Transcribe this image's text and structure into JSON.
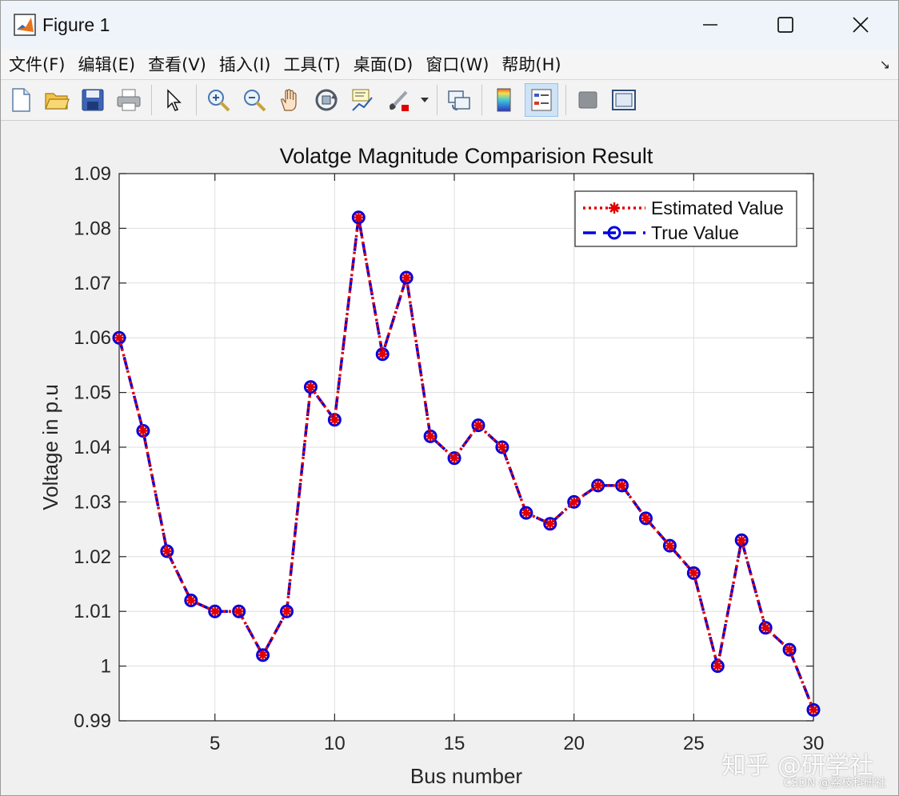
{
  "window": {
    "title": "Figure 1",
    "menu": [
      "文件(F)",
      "编辑(E)",
      "查看(V)",
      "插入(I)",
      "工具(T)",
      "桌面(D)",
      "窗口(W)",
      "帮助(H)"
    ],
    "toolbar_icons": [
      "new-file-icon",
      "open-folder-icon",
      "save-icon",
      "print-icon",
      "select-pointer-icon",
      "zoom-in-icon",
      "zoom-out-icon",
      "pan-hand-icon",
      "rotate-3d-icon",
      "data-cursor-icon",
      "brush-icon",
      "brush-dropdown-icon",
      "link-plot-icon",
      "colorbar-icon",
      "legend-icon",
      "hide-plot-tools-icon",
      "show-plot-tools-icon"
    ],
    "active_tool": "legend-icon"
  },
  "watermark": {
    "main": "知乎 @研学社",
    "sub": "CSDN @荔枝科研社"
  },
  "chart_data": {
    "type": "line",
    "title": "Volatge Magnitude Comparision Result",
    "xlabel": "Bus number",
    "ylabel": "Voltage in p.u",
    "xlim": [
      1,
      30
    ],
    "ylim": [
      0.99,
      1.09
    ],
    "xticks": [
      5,
      10,
      15,
      20,
      25,
      30
    ],
    "yticks": [
      "0.99",
      "1",
      "1.01",
      "1.02",
      "1.03",
      "1.04",
      "1.05",
      "1.06",
      "1.07",
      "1.08",
      "1.09"
    ],
    "grid": true,
    "legend_position": "top-right",
    "x": [
      1,
      2,
      3,
      4,
      5,
      6,
      7,
      8,
      9,
      10,
      11,
      12,
      13,
      14,
      15,
      16,
      17,
      18,
      19,
      20,
      21,
      22,
      23,
      24,
      25,
      26,
      27,
      28,
      29,
      30
    ],
    "series": [
      {
        "name": "Estimated Value",
        "color": "#e00000",
        "line": "dotted",
        "marker": "asterisk",
        "values": [
          1.06,
          1.043,
          1.021,
          1.012,
          1.01,
          1.01,
          1.002,
          1.01,
          1.051,
          1.045,
          1.082,
          1.057,
          1.071,
          1.042,
          1.038,
          1.044,
          1.04,
          1.028,
          1.026,
          1.03,
          1.033,
          1.033,
          1.027,
          1.022,
          1.017,
          1.0,
          1.023,
          1.007,
          1.003,
          0.992
        ]
      },
      {
        "name": "True Value",
        "color": "#0000e0",
        "line": "dashed",
        "marker": "circle",
        "values": [
          1.06,
          1.043,
          1.021,
          1.012,
          1.01,
          1.01,
          1.002,
          1.01,
          1.051,
          1.045,
          1.082,
          1.057,
          1.071,
          1.042,
          1.038,
          1.044,
          1.04,
          1.028,
          1.026,
          1.03,
          1.033,
          1.033,
          1.027,
          1.022,
          1.017,
          1.0,
          1.023,
          1.007,
          1.003,
          0.992
        ]
      }
    ]
  }
}
